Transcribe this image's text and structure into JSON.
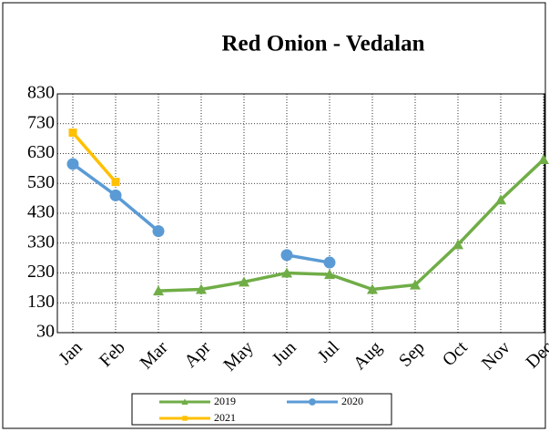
{
  "chart_data": {
    "type": "line",
    "title": "Red Onion - Vedalan",
    "categories": [
      "Jan",
      "Feb",
      "Mar",
      "Apr",
      "May",
      "Jun",
      "Jul",
      "Aug",
      "Sep",
      "Oct",
      "Nov",
      "Dec"
    ],
    "series": [
      {
        "name": "2019",
        "color": "#70ad47",
        "marker": "triangle",
        "values": [
          null,
          null,
          170,
          175,
          200,
          230,
          225,
          175,
          190,
          325,
          475,
          610
        ]
      },
      {
        "name": "2020",
        "color": "#5b9bd5",
        "marker": "circle",
        "values": [
          595,
          490,
          370,
          null,
          null,
          290,
          265,
          null,
          null,
          null,
          null,
          null
        ]
      },
      {
        "name": "2021",
        "color": "#ffc000",
        "marker": "square",
        "values": [
          700,
          535,
          null,
          null,
          null,
          null,
          null,
          null,
          null,
          null,
          null,
          null
        ]
      }
    ],
    "ylim": [
      30,
      830
    ],
    "yticks": [
      30,
      130,
      230,
      330,
      430,
      530,
      630,
      730,
      830
    ],
    "grid": true,
    "legend": "bottom"
  }
}
